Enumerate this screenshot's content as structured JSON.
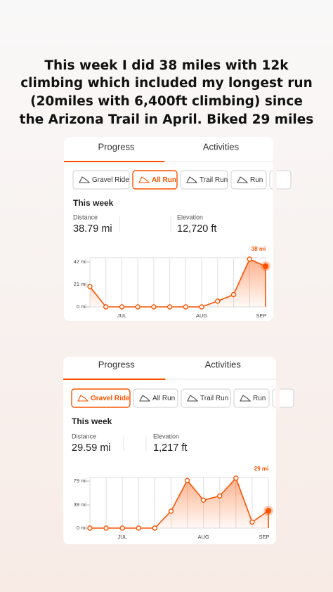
{
  "caption_lines": [
    "This week I did 38 miles with 12k",
    "climbing which included my longest run",
    "(20miles with 6,400ft climbing) since",
    "the Arizona Trail in April.  Biked 29 miles"
  ],
  "panels": [
    {
      "tabs": [
        "Progress",
        "Activities"
      ],
      "filters": [
        {
          "label": "Gravel Ride",
          "selected": false
        },
        {
          "label": "All Run",
          "selected": true
        },
        {
          "label": "Trail Run",
          "selected": false
        },
        {
          "label": "Run",
          "selected": false
        }
      ],
      "week_label": "This week",
      "stats": [
        {
          "label": "Distance",
          "value": "38.79 mi"
        },
        {
          "label": "Elevation",
          "value": "12,720 ft"
        }
      ]
    },
    {
      "tabs": [
        "Progress",
        "Activities"
      ],
      "filters": [
        {
          "label": "Gravel Ride",
          "selected": true
        },
        {
          "label": "All Run",
          "selected": false
        },
        {
          "label": "Trail Run",
          "selected": false
        },
        {
          "label": "Run",
          "selected": false
        }
      ],
      "week_label": "This week",
      "stats": [
        {
          "label": "Distance",
          "value": "29.59 mi"
        },
        {
          "label": "Elevation",
          "value": "1,217 ft"
        }
      ]
    }
  ],
  "chart_data": [
    {
      "type": "line",
      "color": "#fc5200",
      "categories": [
        null,
        null,
        "JUL",
        null,
        null,
        null,
        null,
        "AUG",
        null,
        null,
        null,
        "SEP"
      ],
      "values": [
        19,
        0,
        0,
        0,
        0,
        0,
        0,
        0,
        5.4,
        11.5,
        44.7,
        38
      ],
      "value_labels": [
        null,
        null,
        null,
        null,
        null,
        null,
        null,
        null,
        null,
        null,
        null,
        "38 mi"
      ],
      "ylim": [
        0,
        46
      ],
      "yticks": [
        {
          "value": 0,
          "label": "0 mi"
        },
        {
          "value": 21,
          "label": "21 mi"
        },
        {
          "value": 42,
          "label": "42 mi"
        }
      ]
    },
    {
      "type": "line",
      "color": "#fc5200",
      "categories": [
        null,
        null,
        "JUL",
        null,
        null,
        null,
        null,
        "AUG",
        null,
        null,
        null,
        "SEP"
      ],
      "values": [
        0,
        0,
        0,
        0,
        0,
        28.4,
        80,
        47,
        54,
        84,
        10,
        29
      ],
      "value_labels": [
        null,
        null,
        null,
        null,
        null,
        null,
        null,
        null,
        null,
        null,
        null,
        "29 mi"
      ],
      "ylim": [
        0,
        85
      ],
      "yticks": [
        {
          "value": 0,
          "label": "0 mi"
        },
        {
          "value": 39,
          "label": "39 mi"
        },
        {
          "value": 79,
          "label": "79 mi"
        }
      ]
    }
  ]
}
